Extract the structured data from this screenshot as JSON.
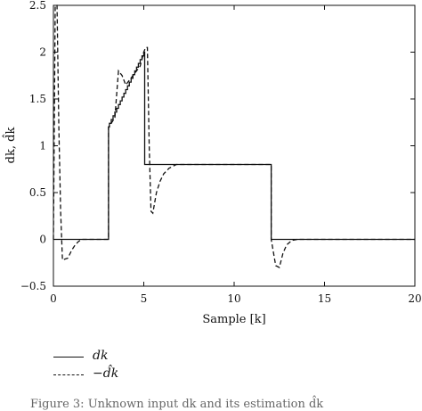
{
  "chart_data": {
    "type": "line",
    "xlabel": "Sample [k]",
    "ylabel": "dk, d̂k",
    "xlim": [
      0,
      20
    ],
    "ylim": [
      -0.5,
      2.5
    ],
    "x_ticks": [
      "0",
      "5",
      "10",
      "15",
      "20"
    ],
    "y_ticks": [
      "−0.5",
      "0",
      "0.5",
      "1",
      "1.5",
      "2",
      "2.5"
    ],
    "grid": false,
    "legend_position": "below",
    "series": [
      {
        "name": "dk",
        "style": "solid",
        "points": [
          [
            0,
            0
          ],
          [
            3.05,
            0
          ],
          [
            3.05,
            1.2
          ],
          [
            3.1,
            1.2
          ],
          [
            3.1,
            1.24
          ],
          [
            3.2,
            1.24
          ],
          [
            3.2,
            1.28
          ],
          [
            3.3,
            1.28
          ],
          [
            3.3,
            1.32
          ],
          [
            3.4,
            1.32
          ],
          [
            3.4,
            1.36
          ],
          [
            3.5,
            1.36
          ],
          [
            3.5,
            1.4
          ],
          [
            3.6,
            1.4
          ],
          [
            3.6,
            1.44
          ],
          [
            3.7,
            1.44
          ],
          [
            3.7,
            1.48
          ],
          [
            3.8,
            1.48
          ],
          [
            3.8,
            1.52
          ],
          [
            3.9,
            1.52
          ],
          [
            3.9,
            1.56
          ],
          [
            4.0,
            1.56
          ],
          [
            4.0,
            1.6
          ],
          [
            4.1,
            1.6
          ],
          [
            4.1,
            1.64
          ],
          [
            4.2,
            1.64
          ],
          [
            4.2,
            1.68
          ],
          [
            4.3,
            1.68
          ],
          [
            4.3,
            1.72
          ],
          [
            4.4,
            1.72
          ],
          [
            4.4,
            1.76
          ],
          [
            4.5,
            1.76
          ],
          [
            4.5,
            1.8
          ],
          [
            4.6,
            1.8
          ],
          [
            4.6,
            1.84
          ],
          [
            4.7,
            1.84
          ],
          [
            4.7,
            1.88
          ],
          [
            4.8,
            1.88
          ],
          [
            4.8,
            1.92
          ],
          [
            4.9,
            1.92
          ],
          [
            4.9,
            1.96
          ],
          [
            5.0,
            1.96
          ],
          [
            5.0,
            2.0
          ],
          [
            5.05,
            2.0
          ],
          [
            5.05,
            0.8
          ],
          [
            12.05,
            0.8
          ],
          [
            12.05,
            0
          ],
          [
            20,
            0
          ]
        ]
      },
      {
        "name": "−d̂k",
        "style": "dashed",
        "points": [
          [
            0,
            0
          ],
          [
            0.1,
            2.5
          ],
          [
            0.2,
            2.5
          ],
          [
            0.3,
            1.2
          ],
          [
            0.4,
            0.3
          ],
          [
            0.5,
            -0.22
          ],
          [
            0.8,
            -0.2
          ],
          [
            1.0,
            -0.12
          ],
          [
            1.2,
            -0.06
          ],
          [
            1.4,
            -0.02
          ],
          [
            1.6,
            0
          ],
          [
            3.05,
            0
          ],
          [
            3.05,
            1.2
          ],
          [
            3.2,
            1.24
          ],
          [
            3.4,
            1.3
          ],
          [
            3.5,
            1.55
          ],
          [
            3.6,
            1.8
          ],
          [
            3.8,
            1.75
          ],
          [
            4.0,
            1.65
          ],
          [
            4.2,
            1.7
          ],
          [
            4.4,
            1.75
          ],
          [
            4.6,
            1.8
          ],
          [
            4.8,
            1.85
          ],
          [
            5.0,
            2.0
          ],
          [
            5.1,
            2.05
          ],
          [
            5.2,
            2.05
          ],
          [
            5.3,
            1.0
          ],
          [
            5.4,
            0.3
          ],
          [
            5.5,
            0.28
          ],
          [
            5.7,
            0.5
          ],
          [
            5.9,
            0.62
          ],
          [
            6.1,
            0.7
          ],
          [
            6.4,
            0.76
          ],
          [
            6.8,
            0.8
          ],
          [
            12.05,
            0.8
          ],
          [
            12.05,
            0
          ],
          [
            12.3,
            -0.28
          ],
          [
            12.5,
            -0.3
          ],
          [
            12.7,
            -0.15
          ],
          [
            12.9,
            -0.06
          ],
          [
            13.2,
            -0.01
          ],
          [
            13.5,
            0
          ],
          [
            20,
            0
          ]
        ]
      }
    ]
  },
  "legend": [
    {
      "label": "dk",
      "style": "solid"
    },
    {
      "label": "−d̂k",
      "style": "dashed"
    }
  ],
  "caption": "Figure 3: Unknown input dk and its estimation d̂k"
}
